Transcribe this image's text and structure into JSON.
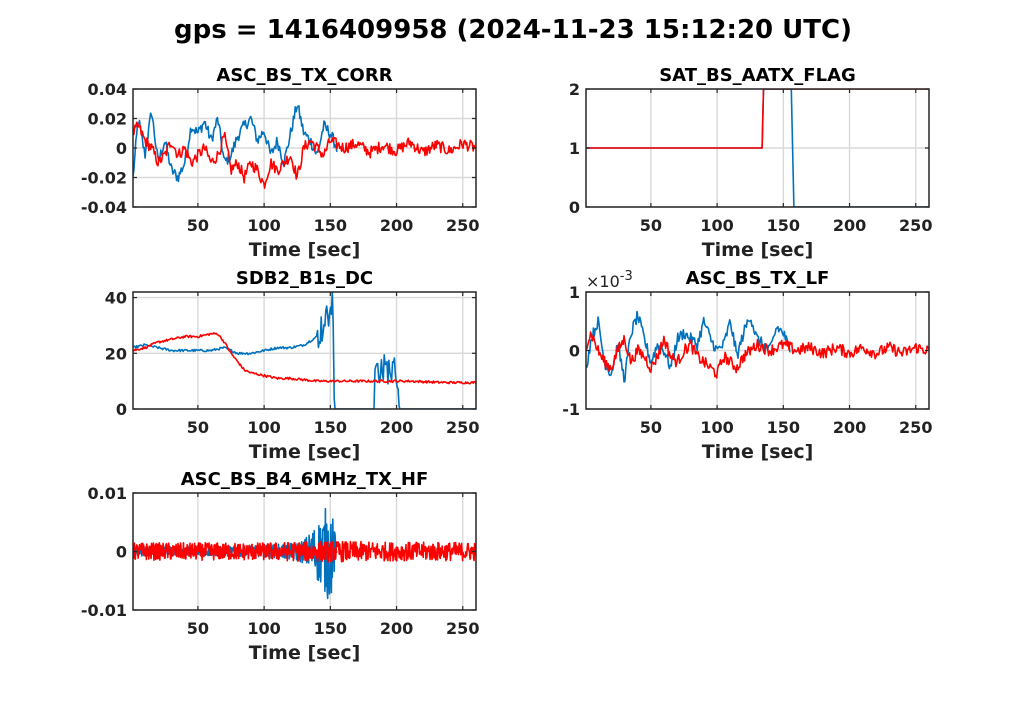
{
  "figure": {
    "title": "gps = 1416409958 (2024-11-23 15:12:20 UTC)"
  },
  "colors": {
    "series1": "#0072bd",
    "series2": "#ff0000"
  },
  "chart_data": [
    {
      "type": "line",
      "title": "ASC_BS_TX_CORR",
      "xlabel": "Time [sec]",
      "xlim": [
        1,
        260
      ],
      "ylim": [
        -0.04,
        0.04
      ],
      "xticks": [
        50,
        100,
        150,
        200,
        250
      ],
      "xtick_labels": [
        "50",
        "100",
        "150",
        "200",
        "250"
      ],
      "yticks": [
        -0.04,
        -0.02,
        0,
        0.02,
        0.04
      ],
      "ytick_labels": [
        "-0.04",
        "-0.02",
        "0",
        "0.02",
        "0.04"
      ],
      "grid": true,
      "series": [
        {
          "color": "#0072bd",
          "x_end": 155,
          "points": [
            [
              1,
              -0.02
            ],
            [
              5,
              0.02
            ],
            [
              10,
              -0.005
            ],
            [
              15,
              0.025
            ],
            [
              20,
              -0.01
            ],
            [
              25,
              0.005
            ],
            [
              30,
              -0.015
            ],
            [
              35,
              -0.02
            ],
            [
              40,
              -0.01
            ],
            [
              45,
              0.015
            ],
            [
              50,
              0.01
            ],
            [
              55,
              0.018
            ],
            [
              60,
              0.005
            ],
            [
              65,
              0.02
            ],
            [
              70,
              -0.01
            ],
            [
              75,
              -0.005
            ],
            [
              80,
              0.008
            ],
            [
              85,
              0.015
            ],
            [
              90,
              0.02
            ],
            [
              95,
              0.005
            ],
            [
              100,
              0.012
            ],
            [
              105,
              -0.005
            ],
            [
              110,
              0.005
            ],
            [
              115,
              -0.01
            ],
            [
              120,
              0.01
            ],
            [
              125,
              0.03
            ],
            [
              130,
              0.01
            ],
            [
              135,
              0.005
            ],
            [
              140,
              -0.005
            ],
            [
              145,
              0.015
            ],
            [
              150,
              0.01
            ],
            [
              155,
              0.0
            ]
          ]
        },
        {
          "color": "#ff0000",
          "x_end": 260,
          "points": [
            [
              1,
              0.01
            ],
            [
              5,
              0.015
            ],
            [
              10,
              0.005
            ],
            [
              15,
              0.0
            ],
            [
              20,
              -0.01
            ],
            [
              25,
              -0.005
            ],
            [
              30,
              0.005
            ],
            [
              35,
              -0.005
            ],
            [
              40,
              0.0
            ],
            [
              45,
              -0.01
            ],
            [
              50,
              -0.005
            ],
            [
              55,
              0.0
            ],
            [
              60,
              -0.01
            ],
            [
              65,
              -0.005
            ],
            [
              70,
              0.008
            ],
            [
              75,
              -0.015
            ],
            [
              80,
              -0.01
            ],
            [
              85,
              -0.02
            ],
            [
              90,
              -0.01
            ],
            [
              95,
              -0.015
            ],
            [
              100,
              -0.025
            ],
            [
              105,
              -0.01
            ],
            [
              110,
              -0.015
            ],
            [
              115,
              -0.01
            ],
            [
              120,
              -0.005
            ],
            [
              125,
              -0.02
            ],
            [
              130,
              0.0
            ],
            [
              135,
              0.005
            ],
            [
              140,
              0.0
            ],
            [
              145,
              -0.005
            ],
            [
              150,
              0.005
            ],
            [
              160,
              0.0
            ],
            [
              170,
              0.003
            ],
            [
              180,
              -0.003
            ],
            [
              190,
              0.002
            ],
            [
              200,
              -0.002
            ],
            [
              210,
              0.004
            ],
            [
              220,
              -0.003
            ],
            [
              230,
              0.002
            ],
            [
              240,
              -0.002
            ],
            [
              250,
              0.003
            ],
            [
              260,
              0.0
            ]
          ]
        }
      ]
    },
    {
      "type": "line",
      "title": "SAT_BS_AATX_FLAG",
      "xlabel": "Time [sec]",
      "xlim": [
        1,
        260
      ],
      "ylim": [
        0,
        2
      ],
      "xticks": [
        50,
        100,
        150,
        200,
        250
      ],
      "xtick_labels": [
        "50",
        "100",
        "150",
        "200",
        "250"
      ],
      "yticks": [
        0,
        1,
        2
      ],
      "ytick_labels": [
        "0",
        "1",
        "2"
      ],
      "grid": true,
      "series": [
        {
          "color": "#0072bd",
          "points": [
            [
              1,
              1
            ],
            [
              134,
              1
            ],
            [
              135,
              2
            ],
            [
              156,
              2
            ],
            [
              158,
              0
            ],
            [
              260,
              0
            ]
          ]
        },
        {
          "color": "#ff0000",
          "points": [
            [
              1,
              1
            ],
            [
              134,
              1
            ],
            [
              135,
              2
            ],
            [
              260,
              2
            ]
          ]
        }
      ]
    },
    {
      "type": "line",
      "title": "SDB2_B1s_DC",
      "xlabel": "Time [sec]",
      "xlim": [
        1,
        260
      ],
      "ylim": [
        0,
        42
      ],
      "xticks": [
        50,
        100,
        150,
        200,
        250
      ],
      "xtick_labels": [
        "50",
        "100",
        "150",
        "200",
        "250"
      ],
      "yticks": [
        0,
        20,
        40
      ],
      "ytick_labels": [
        "0",
        "20",
        "40"
      ],
      "grid": true,
      "series": [
        {
          "color": "#0072bd",
          "points": [
            [
              1,
              22
            ],
            [
              10,
              23
            ],
            [
              20,
              22
            ],
            [
              30,
              21
            ],
            [
              40,
              21
            ],
            [
              50,
              21
            ],
            [
              60,
              21
            ],
            [
              70,
              22
            ],
            [
              80,
              20
            ],
            [
              90,
              20
            ],
            [
              100,
              21
            ],
            [
              110,
              22
            ],
            [
              120,
              22
            ],
            [
              130,
              23
            ],
            [
              140,
              26
            ],
            [
              145,
              30
            ],
            [
              150,
              35
            ],
            [
              152,
              38
            ],
            [
              153,
              0
            ],
            [
              183,
              0
            ],
            [
              184,
              20
            ],
            [
              190,
              20
            ],
            [
              200,
              19
            ],
            [
              202,
              0
            ],
            [
              260,
              0
            ]
          ]
        },
        {
          "color": "#ff0000",
          "points": [
            [
              1,
              21
            ],
            [
              10,
              22
            ],
            [
              20,
              24
            ],
            [
              30,
              25
            ],
            [
              40,
              26
            ],
            [
              50,
              26
            ],
            [
              60,
              27
            ],
            [
              65,
              27
            ],
            [
              70,
              24
            ],
            [
              75,
              20
            ],
            [
              80,
              17
            ],
            [
              85,
              14
            ],
            [
              90,
              13
            ],
            [
              100,
              12
            ],
            [
              110,
              11
            ],
            [
              120,
              11
            ],
            [
              130,
              10.5
            ],
            [
              140,
              10
            ],
            [
              150,
              10
            ],
            [
              160,
              10
            ],
            [
              170,
              10
            ],
            [
              180,
              10
            ],
            [
              190,
              10
            ],
            [
              200,
              10
            ],
            [
              210,
              10
            ],
            [
              220,
              9.8
            ],
            [
              230,
              9.6
            ],
            [
              240,
              9.5
            ],
            [
              250,
              9.5
            ],
            [
              260,
              9.5
            ]
          ]
        }
      ]
    },
    {
      "type": "line",
      "title": "ASC_BS_TX_LF",
      "xlabel": "Time [sec]",
      "xlim": [
        1,
        260
      ],
      "ylim": [
        -1,
        1
      ],
      "y_exponent": "×10-3",
      "xticks": [
        50,
        100,
        150,
        200,
        250
      ],
      "xtick_labels": [
        "50",
        "100",
        "150",
        "200",
        "250"
      ],
      "yticks": [
        -1,
        0,
        1
      ],
      "ytick_labels": [
        "-1",
        "0",
        "1"
      ],
      "grid": true,
      "series": [
        {
          "color": "#0072bd",
          "x_end": 155,
          "points": [
            [
              1,
              -0.3
            ],
            [
              5,
              0.2
            ],
            [
              10,
              0.5
            ],
            [
              15,
              -0.2
            ],
            [
              20,
              -0.4
            ],
            [
              25,
              0.1
            ],
            [
              30,
              -0.5
            ],
            [
              35,
              0.3
            ],
            [
              40,
              0.6
            ],
            [
              45,
              0.2
            ],
            [
              50,
              -0.2
            ],
            [
              55,
              0.1
            ],
            [
              60,
              0.0
            ],
            [
              65,
              -0.3
            ],
            [
              70,
              0.2
            ],
            [
              75,
              0.3
            ],
            [
              80,
              0.2
            ],
            [
              85,
              0.1
            ],
            [
              90,
              0.5
            ],
            [
              95,
              0.2
            ],
            [
              100,
              0.0
            ],
            [
              105,
              0.1
            ],
            [
              110,
              0.5
            ],
            [
              115,
              -0.1
            ],
            [
              120,
              0.3
            ],
            [
              125,
              0.6
            ],
            [
              130,
              0.2
            ],
            [
              135,
              0.1
            ],
            [
              140,
              0.0
            ],
            [
              145,
              0.4
            ],
            [
              150,
              0.3
            ],
            [
              155,
              0.0
            ]
          ]
        },
        {
          "color": "#ff0000",
          "x_end": 260,
          "points": [
            [
              1,
              0.1
            ],
            [
              5,
              0.3
            ],
            [
              10,
              0.0
            ],
            [
              15,
              -0.2
            ],
            [
              20,
              -0.3
            ],
            [
              25,
              0.0
            ],
            [
              30,
              0.2
            ],
            [
              35,
              -0.2
            ],
            [
              40,
              0.0
            ],
            [
              45,
              -0.1
            ],
            [
              50,
              -0.3
            ],
            [
              55,
              -0.1
            ],
            [
              60,
              0.2
            ],
            [
              65,
              -0.1
            ],
            [
              70,
              -0.2
            ],
            [
              75,
              0.0
            ],
            [
              80,
              0.1
            ],
            [
              85,
              -0.1
            ],
            [
              90,
              -0.2
            ],
            [
              95,
              -0.3
            ],
            [
              100,
              -0.4
            ],
            [
              105,
              -0.1
            ],
            [
              110,
              -0.2
            ],
            [
              115,
              -0.3
            ],
            [
              120,
              -0.1
            ],
            [
              125,
              0.0
            ],
            [
              130,
              0.1
            ],
            [
              140,
              0.0
            ],
            [
              150,
              0.1
            ],
            [
              160,
              0.0
            ],
            [
              170,
              0.05
            ],
            [
              180,
              -0.05
            ],
            [
              190,
              0.05
            ],
            [
              200,
              -0.05
            ],
            [
              210,
              0.05
            ],
            [
              220,
              -0.05
            ],
            [
              230,
              0.05
            ],
            [
              240,
              -0.05
            ],
            [
              250,
              0.05
            ],
            [
              260,
              0.0
            ]
          ]
        }
      ]
    },
    {
      "type": "line",
      "title": "ASC_BS_B4_6MHz_TX_HF",
      "xlabel": "Time [sec]",
      "xlim": [
        1,
        260
      ],
      "ylim": [
        -0.01,
        0.01
      ],
      "xticks": [
        50,
        100,
        150,
        200,
        250
      ],
      "xtick_labels": [
        "50",
        "100",
        "150",
        "200",
        "250"
      ],
      "yticks": [
        -0.01,
        0,
        0.01
      ],
      "ytick_labels": [
        "-0.01",
        "0",
        "0.01"
      ],
      "grid": true,
      "series": [
        {
          "color": "#0072bd",
          "x_end": 155,
          "envelope": [
            [
              1,
              0.0008
            ],
            [
              50,
              0.0008
            ],
            [
              100,
              0.001
            ],
            [
              120,
              0.0015
            ],
            [
              130,
              0.002
            ],
            [
              140,
              0.005
            ],
            [
              145,
              0.007
            ],
            [
              150,
              0.009
            ],
            [
              153,
              0.004
            ],
            [
              155,
              0.001
            ]
          ]
        },
        {
          "color": "#ff0000",
          "x_end": 260,
          "envelope": [
            [
              1,
              0.0015
            ],
            [
              50,
              0.0015
            ],
            [
              100,
              0.0015
            ],
            [
              140,
              0.0018
            ],
            [
              150,
              0.0018
            ],
            [
              200,
              0.0016
            ],
            [
              260,
              0.0016
            ]
          ]
        }
      ]
    }
  ]
}
